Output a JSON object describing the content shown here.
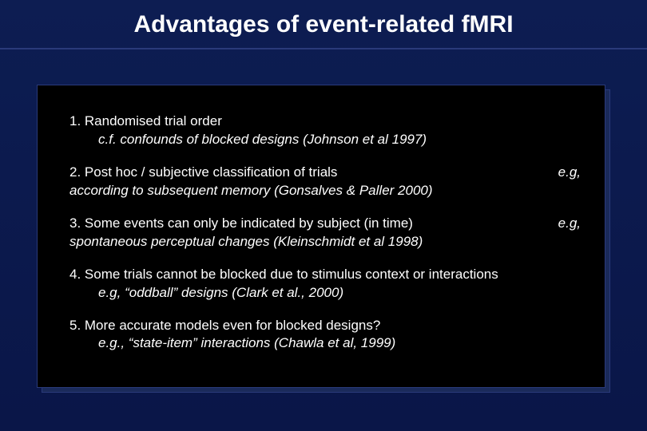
{
  "title": "Advantages of event-related fMRI",
  "colors": {
    "background_gradient_top": "#0d1d52",
    "background_gradient_bottom": "#0a1648",
    "title_text": "#ffffff",
    "title_underline": "#2a3a7a",
    "box_fill": "#000000",
    "box_border": "#2a3a7a",
    "box_shadow": "#1a2a5a",
    "body_text": "#ffffff"
  },
  "typography": {
    "title_fontsize": 30,
    "title_fontweight": "bold",
    "title_fontfamily": "Trebuchet MS",
    "body_fontsize": 17,
    "body_fontfamily": "Arial"
  },
  "items": [
    {
      "main": "1. Randomised trial order",
      "sub": "c.f. confounds of blocked designs (Johnson et al 1997)",
      "sub_indent": true
    },
    {
      "main": "2. Post hoc / subjective classification of trials",
      "inline_sub": "according to subsequent memory (Gonsalves & Paller 2000)",
      "right": "e.g,"
    },
    {
      "main": "3. Some events can only be indicated by subject (in time)",
      "inline_sub": "spontaneous perceptual changes (Kleinschmidt et al 1998)",
      "right": "e.g,"
    },
    {
      "main": "4. Some trials cannot be blocked due to stimulus context or interactions",
      "sub": "e.g, “oddball” designs (Clark et al., 2000)",
      "sub_indent": true
    },
    {
      "main": "5. More accurate models even for blocked designs?",
      "sub": "e.g., “state-item” interactions (Chawla et al, 1999)",
      "sub_indent": true
    }
  ]
}
